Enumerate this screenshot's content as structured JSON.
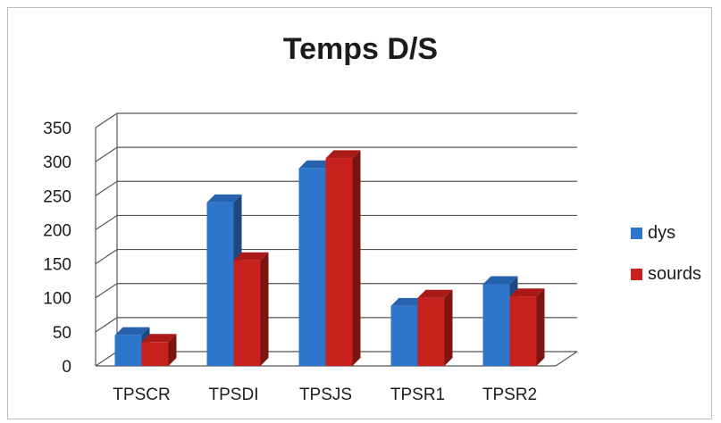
{
  "chart_data": {
    "type": "bar",
    "title": "Temps D/S",
    "categories": [
      "TPSCR",
      "TPSDI",
      "TPSJS",
      "TPSR1",
      "TPSR2"
    ],
    "series": [
      {
        "name": "dys",
        "values": [
          45,
          240,
          290,
          88,
          120
        ],
        "color": "#2e75cc"
      },
      {
        "name": "sourds",
        "values": [
          35,
          155,
          305,
          100,
          102
        ],
        "color": "#c8201c"
      }
    ],
    "yticks": [
      "0",
      "50",
      "100",
      "150",
      "200",
      "250",
      "300",
      "350"
    ],
    "ylim": [
      0,
      350
    ],
    "grid": true,
    "legend_position": "right",
    "xlabel": "",
    "ylabel": ""
  }
}
